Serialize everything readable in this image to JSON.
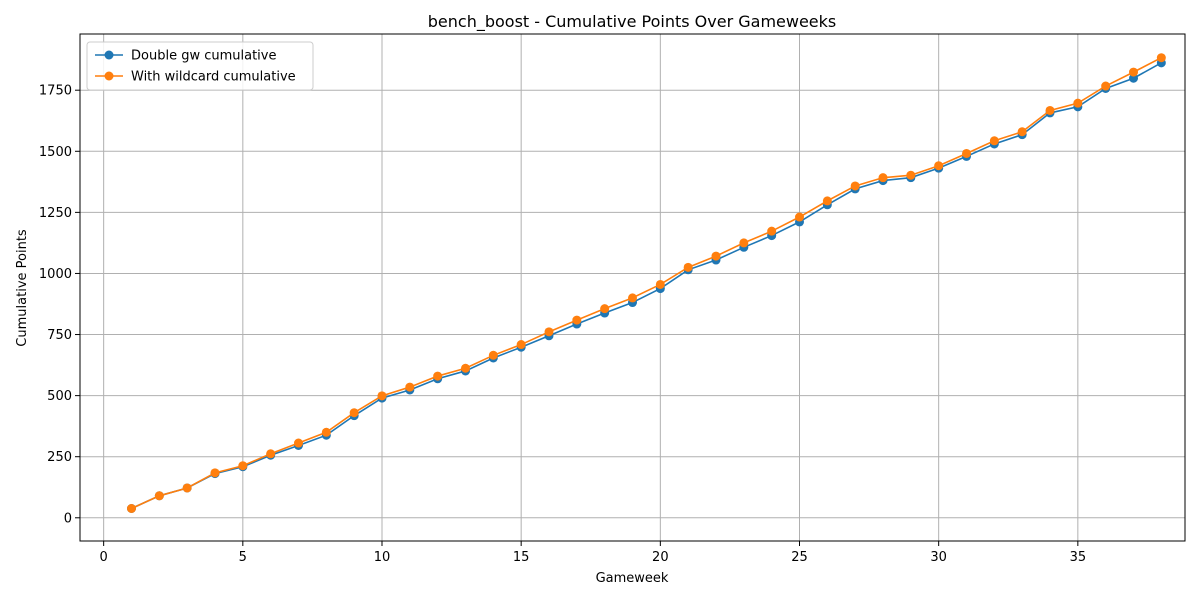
{
  "chart_data": {
    "type": "line",
    "title": "bench_boost - Cumulative Points Over Gameweeks",
    "xlabel": "Gameweek",
    "ylabel": "Cumulative Points",
    "xlim": [
      -0.85,
      38.85
    ],
    "ylim": [
      -95,
      1980
    ],
    "xticks": [
      0,
      5,
      10,
      15,
      20,
      25,
      30,
      35
    ],
    "yticks": [
      0,
      250,
      500,
      750,
      1000,
      1250,
      1500,
      1750
    ],
    "grid": true,
    "legend": "upper-left",
    "x": [
      1,
      2,
      3,
      4,
      5,
      6,
      7,
      8,
      9,
      10,
      11,
      12,
      13,
      14,
      15,
      16,
      17,
      18,
      19,
      20,
      21,
      22,
      23,
      24,
      25,
      26,
      27,
      28,
      29,
      30,
      31,
      32,
      33,
      34,
      35,
      36,
      37,
      38
    ],
    "series": [
      {
        "name": "Double gw cumulative",
        "color": "#1f77b4",
        "values": [
          38,
          90,
          122,
          181,
          209,
          256,
          296,
          338,
          418,
          490,
          523,
          569,
          601,
          654,
          698,
          745,
          793,
          838,
          881,
          938,
          1015,
          1055,
          1107,
          1155,
          1211,
          1281,
          1346,
          1380,
          1392,
          1431,
          1479,
          1530,
          1568,
          1657,
          1682,
          1757,
          1799,
          1862
        ]
      },
      {
        "name": "With wildcard cumulative",
        "color": "#ff7f0e",
        "values": [
          38,
          90,
          122,
          184,
          213,
          262,
          306,
          350,
          430,
          499,
          535,
          580,
          612,
          665,
          709,
          761,
          809,
          856,
          900,
          955,
          1025,
          1071,
          1125,
          1173,
          1231,
          1297,
          1358,
          1392,
          1402,
          1441,
          1491,
          1543,
          1580,
          1667,
          1697,
          1767,
          1824,
          1883
        ]
      }
    ]
  }
}
